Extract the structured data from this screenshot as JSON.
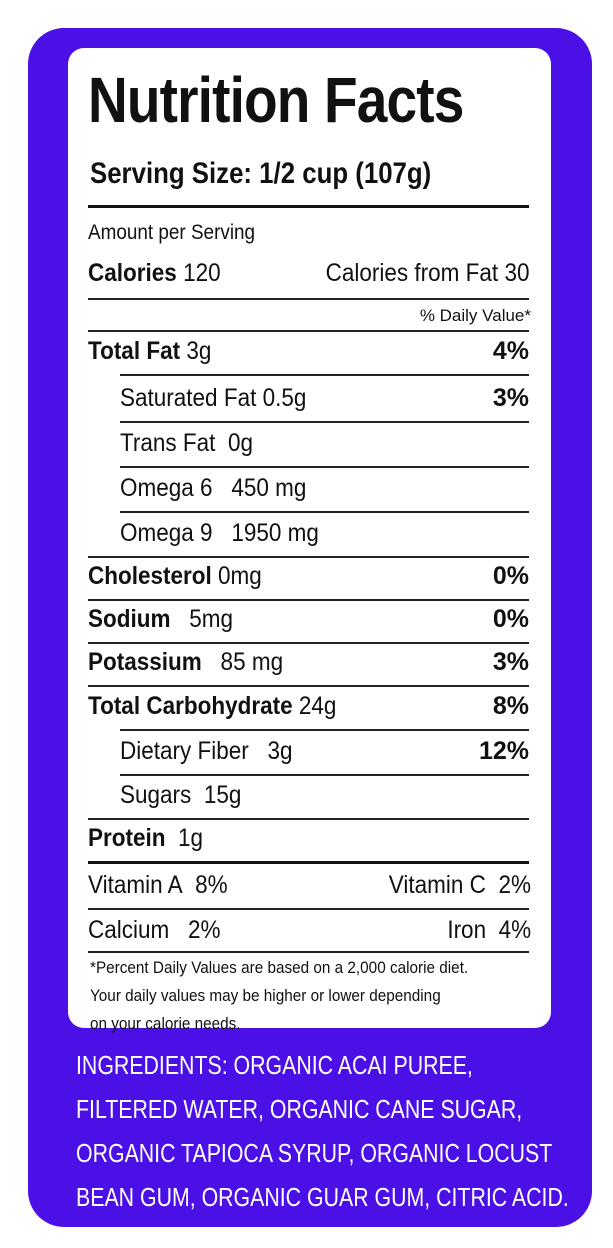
{
  "label": {
    "title": "Nutrition Facts",
    "serving_size": "Serving Size: 1/2 cup (107g)",
    "amount_per_serving": "Amount per Serving",
    "calories_label": "Calories",
    "calories_value": "120",
    "calories_from_fat": "Calories from Fat 30",
    "daily_value_header": "% Daily Value*"
  },
  "nutrients": [
    {
      "name": "Total Fat",
      "amount": "3g",
      "pct": "4%"
    },
    {
      "name": "Saturated Fat",
      "amount": "0.5g",
      "pct": "3%"
    },
    {
      "name": "Trans Fat",
      "amount": "0g",
      "pct": ""
    },
    {
      "name": "Omega 6",
      "amount": "450 mg",
      "pct": ""
    },
    {
      "name": "Omega 9",
      "amount": "1950 mg",
      "pct": ""
    },
    {
      "name": "Cholesterol",
      "amount": "0mg",
      "pct": "0%"
    },
    {
      "name": "Sodium",
      "amount": "5mg",
      "pct": "0%"
    },
    {
      "name": "Potassium",
      "amount": "85 mg",
      "pct": "3%"
    },
    {
      "name": "Total Carbohydrate",
      "amount": "24g",
      "pct": "8%"
    },
    {
      "name": "Dietary Fiber",
      "amount": "3g",
      "pct": "12%"
    },
    {
      "name": "Sugars",
      "amount": "15g",
      "pct": ""
    },
    {
      "name": "Protein",
      "amount": "1g",
      "pct": ""
    }
  ],
  "vitamins": {
    "vitamin_a_label": "Vitamin A",
    "vitamin_a_value": "8%",
    "vitamin_c_label": "Vitamin C",
    "vitamin_c_value": "2%",
    "calcium_label": "Calcium",
    "calcium_value": "2%",
    "iron_label": "Iron",
    "iron_value": "4%"
  },
  "footnote": [
    "*Percent Daily Values are based on a 2,000 calorie diet.",
    "Your daily values may be higher or lower depending",
    "on your calorie needs."
  ],
  "ingredients": [
    "INGREDIENTS: ORGANIC ACAI PUREE,",
    "FILTERED WATER, ORGANIC CANE SUGAR,",
    "ORGANIC TAPIOCA SYRUP, ORGANIC LOCUST",
    "BEAN GUM, ORGANIC GUAR GUM, CITRIC ACID."
  ],
  "colors": {
    "panel": "#4a10e6",
    "card": "#ffffff",
    "text": "#111111"
  }
}
